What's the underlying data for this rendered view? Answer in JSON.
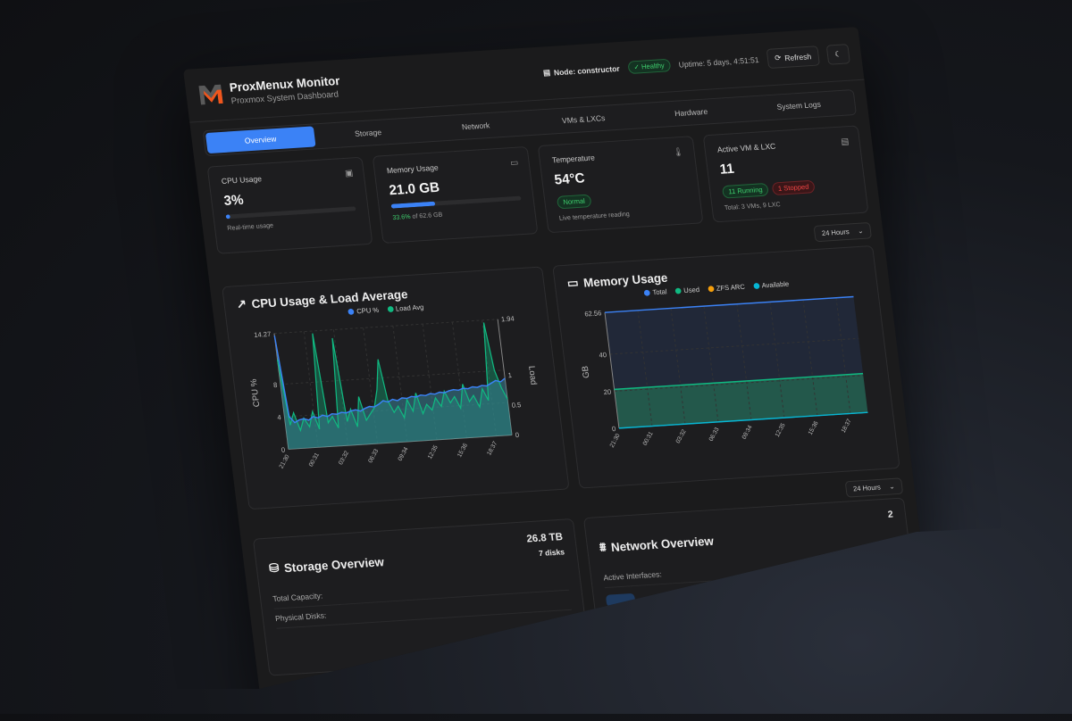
{
  "header": {
    "title": "ProxMenux Monitor",
    "subtitle": "Proxmox System Dashboard",
    "node": "Node: constructor",
    "health": "Healthy",
    "uptime": "Uptime: 5 days, 4:51:51",
    "refresh": "Refresh"
  },
  "tabs": [
    {
      "label": "Overview",
      "active": true
    },
    {
      "label": "Storage"
    },
    {
      "label": "Network"
    },
    {
      "label": "VMs & LXCs"
    },
    {
      "label": "Hardware"
    },
    {
      "label": "System Logs"
    }
  ],
  "cards": {
    "cpu": {
      "label": "CPU Usage",
      "value": "3%",
      "percent": 3,
      "sub": "Real-time usage"
    },
    "memory": {
      "label": "Memory Usage",
      "value": "21.0 GB",
      "percent": 33.6,
      "pct_text": "33.6%",
      "of_text": "of 62.6 GB"
    },
    "temperature": {
      "label": "Temperature",
      "value": "54°C",
      "status": "Normal",
      "sub": "Live temperature reading"
    },
    "vms": {
      "label": "Active VM & LXC",
      "value": "11",
      "running": "11 Running",
      "stopped": "1 Stopped",
      "sub": "Total: 3 VMs, 9 LXC"
    }
  },
  "range_select": "24 Hours",
  "colors": {
    "accent": "#3b82f6",
    "green": "#10b981",
    "orange": "#f59e0b",
    "cyan": "#06b6d4",
    "ok": "#3fcf6e",
    "danger": "#ef4444"
  },
  "chart_data": [
    {
      "type": "line",
      "title": "CPU Usage & Load Average",
      "ylabel": "CPU %",
      "y2label": "Load",
      "legend": [
        "CPU %",
        "Load Avg"
      ],
      "ylim": [
        0,
        14.27
      ],
      "y2lim": [
        0,
        1.94
      ],
      "yticks": [
        "0",
        "4",
        "8",
        "14.27"
      ],
      "y2ticks": [
        "0",
        "0.5",
        "1",
        "1.94"
      ],
      "xticks": [
        "21:30",
        "00:31",
        "03:32",
        "06:33",
        "09:34",
        "12:35",
        "15:36",
        "18:37"
      ],
      "grid": true,
      "series": [
        {
          "name": "CPU %",
          "values": [
            14,
            4,
            3.2,
            3.5,
            3.6,
            3.4,
            3.8,
            3.6,
            3.9,
            3.7,
            4,
            3.9,
            4.1,
            4,
            4.2,
            4.3,
            4.1,
            4.4,
            4.6,
            4.5,
            4.8,
            5.2,
            5,
            5.3,
            5.1,
            5.4,
            5.3,
            5.5,
            5.4,
            5.6,
            5.5,
            5.7,
            5.6,
            5.8,
            5.7,
            5.9,
            6,
            5.9,
            6.1,
            6,
            6.2,
            6.1,
            6.3,
            6.2,
            6.5,
            6.8,
            6.6,
            7
          ]
        },
        {
          "name": "Load Avg",
          "values": [
            1.5,
            0.4,
            0.6,
            0.3,
            0.5,
            0.35,
            0.6,
            0.3,
            1.9,
            0.4,
            0.5,
            0.3,
            1.8,
            0.4,
            0.6,
            0.3,
            0.8,
            0.4,
            0.5,
            0.6,
            0.9,
            1.4,
            0.7,
            0.5,
            0.6,
            0.4,
            0.7,
            0.5,
            0.8,
            0.45,
            0.6,
            0.5,
            0.7,
            0.55,
            0.8,
            0.6,
            0.7,
            0.5,
            0.9,
            0.6,
            0.7,
            0.5,
            0.8,
            0.6,
            1.9,
            1.1,
            0.8,
            0.6
          ]
        }
      ]
    },
    {
      "type": "area",
      "title": "Memory Usage",
      "ylabel": "GB",
      "legend": [
        "Total",
        "Used",
        "ZFS ARC",
        "Available"
      ],
      "ylim": [
        0,
        62.56
      ],
      "yticks": [
        "0",
        "20",
        "40",
        "62.56"
      ],
      "xticks": [
        "21:30",
        "00:31",
        "03:32",
        "06:33",
        "09:34",
        "12:35",
        "15:36",
        "18:37"
      ],
      "grid": true,
      "series": [
        {
          "name": "Total",
          "values": [
            62.56,
            62.56
          ]
        },
        {
          "name": "Used",
          "values": [
            21.0,
            21.0
          ]
        },
        {
          "name": "ZFS ARC",
          "values": [
            0,
            0
          ]
        },
        {
          "name": "Available",
          "values": [
            0,
            0
          ]
        }
      ]
    }
  ],
  "storage": {
    "title": "Storage Overview",
    "total_label": "Total Capacity:",
    "total": "26.8 TB",
    "disks_label": "Physical Disks:",
    "disks": "7 disks"
  },
  "network": {
    "title": "Network Overview",
    "active_label": "Active Interfaces:",
    "active": "2"
  }
}
